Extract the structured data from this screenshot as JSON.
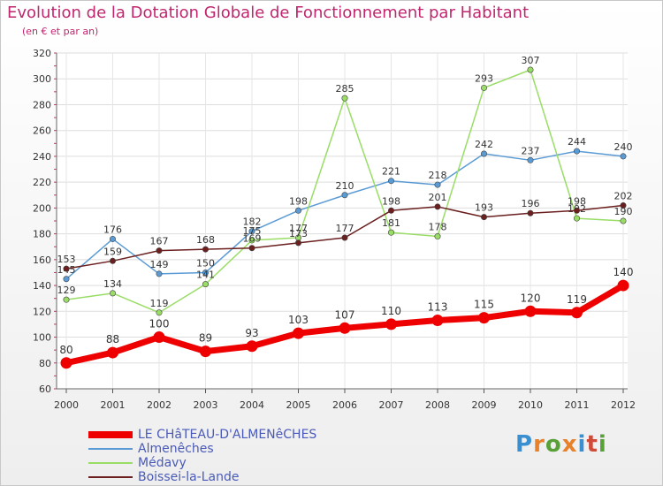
{
  "title": "Evolution de la Dotation Globale de Fonctionnement par Habitant",
  "subtitle": "(en € et par an)",
  "logo_text": "Proxiti",
  "chart_data": {
    "type": "line",
    "title": "Evolution de la Dotation Globale de Fonctionnement par Habitant",
    "subtitle": "(en € et par an)",
    "xlabel": "",
    "ylabel": "",
    "x": [
      "2000",
      "2001",
      "2002",
      "2003",
      "2004",
      "2005",
      "2006",
      "2007",
      "2008",
      "2009",
      "2010",
      "2011",
      "2012"
    ],
    "ylim": [
      60,
      320
    ],
    "yticks": [
      60,
      80,
      100,
      120,
      140,
      160,
      180,
      200,
      220,
      240,
      260,
      280,
      300,
      320
    ],
    "grid": true,
    "legend_position": "bottom-left",
    "series": [
      {
        "name": "LE CHâTEAU-D'ALMENêCHES",
        "color": "#ee0000",
        "values": [
          80,
          88,
          100,
          89,
          93,
          103,
          107,
          110,
          113,
          115,
          120,
          119,
          140
        ]
      },
      {
        "name": "Almenêches",
        "color": "#5b9bd5",
        "values": [
          145,
          176,
          149,
          150,
          182,
          198,
          210,
          221,
          218,
          242,
          237,
          244,
          240
        ]
      },
      {
        "name": "Médavy",
        "color": "#99dd66",
        "values": [
          129,
          134,
          119,
          141,
          175,
          177,
          285,
          181,
          178,
          293,
          307,
          192,
          190
        ]
      },
      {
        "name": "Boissei-la-Lande",
        "color": "#6b1f1f",
        "values": [
          153,
          159,
          167,
          168,
          169,
          173,
          177,
          198,
          201,
          193,
          196,
          198,
          202
        ]
      }
    ]
  }
}
